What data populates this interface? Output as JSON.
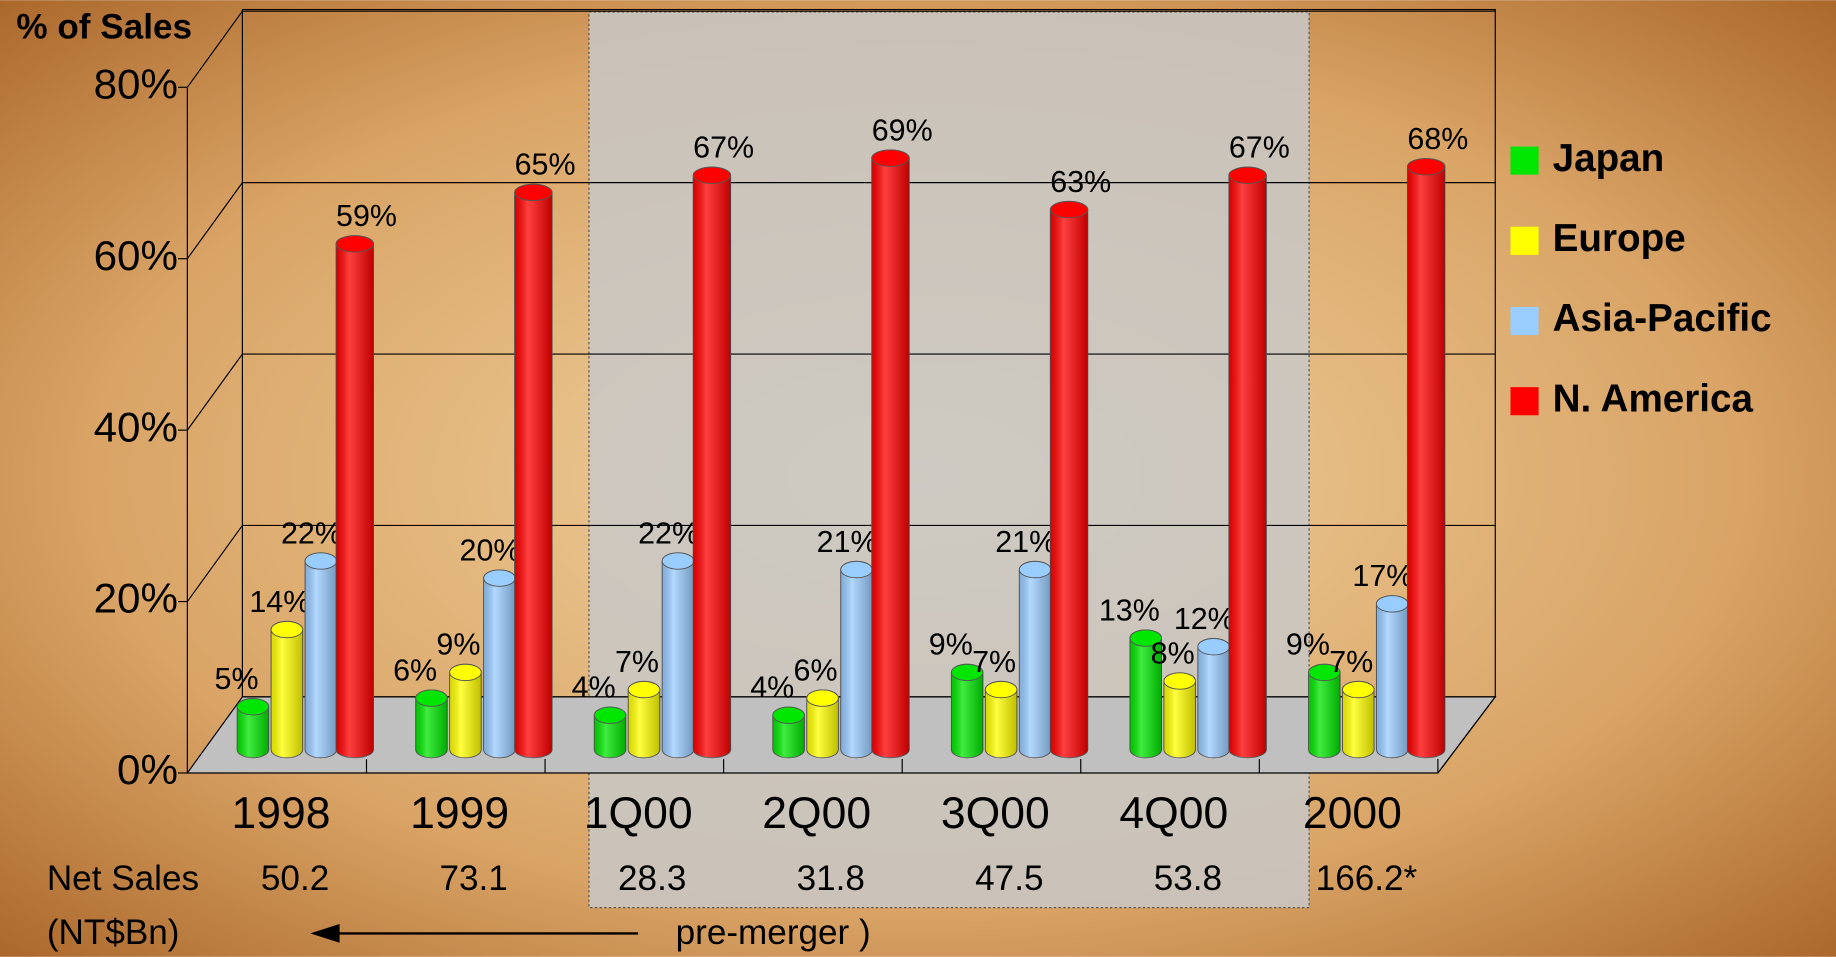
{
  "chart_data": {
    "type": "bar",
    "y_label": "% of Sales",
    "categories": [
      "1998",
      "1999",
      "1Q00",
      "2Q00",
      "3Q00",
      "4Q00",
      "2000"
    ],
    "series": [
      {
        "name": "Japan",
        "color": "#00e600",
        "values": [
          5,
          6,
          4,
          4,
          9,
          13,
          9
        ],
        "value_labels": [
          "5%",
          "6%",
          "4%",
          "4%",
          "9%",
          "13%",
          "9%"
        ]
      },
      {
        "name": "Europe",
        "color": "#ffff00",
        "values": [
          14,
          9,
          7,
          6,
          7,
          8,
          7
        ],
        "value_labels": [
          "14%",
          "9%",
          "7%",
          "6%",
          "7%",
          "8%",
          "7%"
        ]
      },
      {
        "name": "Asia-Pacific",
        "color": "#99ccff",
        "values": [
          22,
          20,
          22,
          21,
          21,
          12,
          17
        ],
        "value_labels": [
          "22%",
          "20%",
          "22%",
          "21%",
          "21%",
          "12%",
          "17%"
        ]
      },
      {
        "name": "N. America",
        "color": "#ff0000",
        "values": [
          59,
          65,
          67,
          69,
          63,
          67,
          68
        ],
        "value_labels": [
          "59%",
          "65%",
          "67%",
          "69%",
          "63%",
          "67%",
          "68%"
        ]
      }
    ],
    "ylim": [
      0,
      80
    ],
    "yticks": [
      {
        "value": 0,
        "label": "0%"
      },
      {
        "value": 20,
        "label": "20%"
      },
      {
        "value": 40,
        "label": "40%"
      },
      {
        "value": 60,
        "label": "60%"
      },
      {
        "value": 80,
        "label": "80%"
      }
    ],
    "grid": true,
    "legend": "right",
    "net_sales": {
      "label": "Net Sales",
      "unit": "(NT$Bn)",
      "labels": [
        "50.2",
        "73.1",
        "28.3",
        "31.8",
        "47.5",
        "53.8",
        "166.2*"
      ]
    },
    "annotation": "pre-merger )"
  }
}
